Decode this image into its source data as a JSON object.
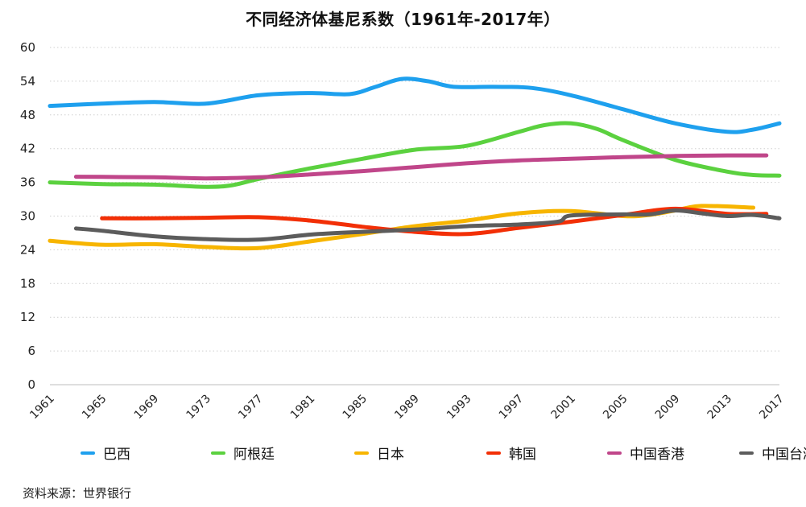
{
  "chart_data": {
    "type": "line",
    "title": "不同经济体基尼系数（1961年-2017年）",
    "xlabel": "",
    "ylabel": "",
    "xlim": [
      1961,
      2017
    ],
    "ylim": [
      0,
      60
    ],
    "yticks": [
      "0",
      "6",
      "12",
      "18",
      "24",
      "30",
      "36",
      "42",
      "48",
      "54",
      "60"
    ],
    "xticks": [
      "1961",
      "1965",
      "1969",
      "1973",
      "1977",
      "1981",
      "1985",
      "1989",
      "1993",
      "1997",
      "2001",
      "2005",
      "2009",
      "2013",
      "2017"
    ],
    "grid": "horizontal dotted",
    "legend_position": "bottom",
    "series": [
      {
        "name": "巴西",
        "color": "#1ea0ee",
        "points": [
          [
            1961,
            49.6
          ],
          [
            1965,
            50.0
          ],
          [
            1969,
            50.3
          ],
          [
            1973,
            50.0
          ],
          [
            1977,
            51.5
          ],
          [
            1981,
            51.9
          ],
          [
            1984,
            51.7
          ],
          [
            1986,
            53.0
          ],
          [
            1988,
            54.4
          ],
          [
            1990,
            54.0
          ],
          [
            1992,
            53.0
          ],
          [
            1995,
            53.0
          ],
          [
            1998,
            52.8
          ],
          [
            2001,
            51.5
          ],
          [
            2005,
            49.0
          ],
          [
            2009,
            46.5
          ],
          [
            2013,
            45.0
          ],
          [
            2015,
            45.4
          ],
          [
            2017,
            46.5
          ]
        ]
      },
      {
        "name": "阿根廷",
        "color": "#5bd13f",
        "points": [
          [
            1961,
            36.0
          ],
          [
            1965,
            35.7
          ],
          [
            1969,
            35.6
          ],
          [
            1973,
            35.2
          ],
          [
            1975,
            35.5
          ],
          [
            1977,
            36.6
          ],
          [
            1981,
            38.5
          ],
          [
            1985,
            40.2
          ],
          [
            1989,
            41.8
          ],
          [
            1993,
            42.5
          ],
          [
            1997,
            45.0
          ],
          [
            1999,
            46.2
          ],
          [
            2001,
            46.5
          ],
          [
            2003,
            45.5
          ],
          [
            2005,
            43.5
          ],
          [
            2009,
            40.0
          ],
          [
            2013,
            37.9
          ],
          [
            2015,
            37.3
          ],
          [
            2017,
            37.2
          ]
        ]
      },
      {
        "name": "日本",
        "color": "#f7b500",
        "points": [
          [
            1961,
            25.6
          ],
          [
            1965,
            24.9
          ],
          [
            1969,
            25.0
          ],
          [
            1973,
            24.5
          ],
          [
            1977,
            24.3
          ],
          [
            1981,
            25.5
          ],
          [
            1985,
            26.8
          ],
          [
            1989,
            28.2
          ],
          [
            1993,
            29.2
          ],
          [
            1997,
            30.5
          ],
          [
            2001,
            30.9
          ],
          [
            2005,
            30.0
          ],
          [
            2007,
            30.2
          ],
          [
            2009,
            31.0
          ],
          [
            2011,
            31.8
          ],
          [
            2015,
            31.5
          ]
        ]
      },
      {
        "name": "韩国",
        "color": "#f22f06",
        "points": [
          [
            1965,
            29.6
          ],
          [
            1969,
            29.6
          ],
          [
            1973,
            29.7
          ],
          [
            1977,
            29.8
          ],
          [
            1981,
            29.2
          ],
          [
            1985,
            28.1
          ],
          [
            1989,
            27.2
          ],
          [
            1993,
            26.8
          ],
          [
            1997,
            27.9
          ],
          [
            2001,
            29.0
          ],
          [
            2005,
            30.2
          ],
          [
            2009,
            31.3
          ],
          [
            2013,
            30.4
          ],
          [
            2016,
            30.4
          ]
        ]
      },
      {
        "name": "中国香港",
        "color": "#c0468a",
        "points": [
          [
            1963,
            37.0
          ],
          [
            1969,
            36.9
          ],
          [
            1973,
            36.7
          ],
          [
            1977,
            36.9
          ],
          [
            1981,
            37.4
          ],
          [
            1985,
            38.0
          ],
          [
            1989,
            38.7
          ],
          [
            1993,
            39.4
          ],
          [
            1997,
            39.9
          ],
          [
            2001,
            40.2
          ],
          [
            2005,
            40.5
          ],
          [
            2009,
            40.7
          ],
          [
            2013,
            40.8
          ],
          [
            2016,
            40.8
          ]
        ]
      },
      {
        "name": "中国台湾",
        "color": "#5c5c5c",
        "points": [
          [
            1963,
            27.8
          ],
          [
            1965,
            27.4
          ],
          [
            1969,
            26.4
          ],
          [
            1973,
            25.9
          ],
          [
            1977,
            25.8
          ],
          [
            1981,
            26.7
          ],
          [
            1985,
            27.2
          ],
          [
            1989,
            27.6
          ],
          [
            1993,
            28.2
          ],
          [
            1997,
            28.5
          ],
          [
            2000,
            29.0
          ],
          [
            2001,
            30.1
          ],
          [
            2005,
            30.3
          ],
          [
            2007,
            30.3
          ],
          [
            2009,
            31.0
          ],
          [
            2011,
            30.5
          ],
          [
            2013,
            30.0
          ],
          [
            2015,
            30.2
          ],
          [
            2017,
            29.6
          ]
        ]
      }
    ]
  },
  "source": "资料来源：世界银行"
}
